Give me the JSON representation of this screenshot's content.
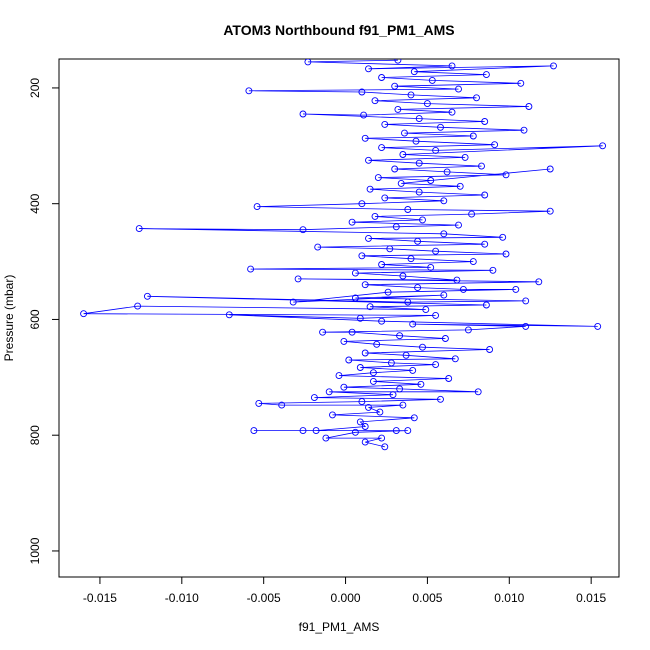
{
  "chart_data": {
    "type": "line",
    "title": "ATOM3 Northbound f91_PM1_AMS",
    "xlabel": "f91_PM1_AMS",
    "ylabel": "Pressure (mbar)",
    "xlim": [
      -0.0175,
      0.0167
    ],
    "ylim": [
      1045,
      150
    ],
    "y_reversed": true,
    "x_ticks": [
      {
        "value": -0.015,
        "label": "-0.015"
      },
      {
        "value": -0.01,
        "label": "-0.010"
      },
      {
        "value": -0.005,
        "label": "-0.005"
      },
      {
        "value": 0.0,
        "label": "0.000"
      },
      {
        "value": 0.005,
        "label": "0.005"
      },
      {
        "value": 0.01,
        "label": "0.010"
      },
      {
        "value": 0.015,
        "label": "0.015"
      }
    ],
    "y_ticks": [
      {
        "value": 200,
        "label": "200"
      },
      {
        "value": 400,
        "label": "400"
      },
      {
        "value": 600,
        "label": "600"
      },
      {
        "value": 800,
        "label": "800"
      },
      {
        "value": 1000,
        "label": "1000"
      }
    ],
    "grid": false,
    "series_color": "#0000ff",
    "marker": "open-circle",
    "series": [
      {
        "name": "",
        "points": [
          [
            0.0024,
            820
          ],
          [
            0.0012,
            812
          ],
          [
            0.0022,
            805
          ],
          [
            -0.0012,
            805
          ],
          [
            0.0006,
            795
          ],
          [
            0.0038,
            792
          ],
          [
            0.0031,
            792
          ],
          [
            -0.0056,
            792
          ],
          [
            -0.0026,
            792
          ],
          [
            -0.0018,
            792
          ],
          [
            0.0012,
            785
          ],
          [
            0.0009,
            777
          ],
          [
            0.0042,
            770
          ],
          [
            -0.0008,
            765
          ],
          [
            0.0021,
            760
          ],
          [
            0.0014,
            752
          ],
          [
            0.0035,
            748
          ],
          [
            -0.0039,
            748
          ],
          [
            -0.0053,
            745
          ],
          [
            0.001,
            742
          ],
          [
            0.0058,
            738
          ],
          [
            -0.0019,
            735
          ],
          [
            0.0029,
            730
          ],
          [
            -0.001,
            725
          ],
          [
            0.0081,
            725
          ],
          [
            0.0033,
            720
          ],
          [
            -0.0001,
            717
          ],
          [
            0.0046,
            712
          ],
          [
            0.0017,
            707
          ],
          [
            0.0063,
            702
          ],
          [
            -0.0004,
            697
          ],
          [
            0.0017,
            692
          ],
          [
            0.0041,
            688
          ],
          [
            0.0009,
            683
          ],
          [
            0.0055,
            678
          ],
          [
            0.0028,
            675
          ],
          [
            0.0002,
            670
          ],
          [
            0.0067,
            668
          ],
          [
            0.0037,
            662
          ],
          [
            0.0012,
            658
          ],
          [
            0.0088,
            652
          ],
          [
            0.0047,
            648
          ],
          [
            0.0019,
            643
          ],
          [
            -0.0001,
            638
          ],
          [
            0.0061,
            633
          ],
          [
            0.0033,
            628
          ],
          [
            0.0004,
            622
          ],
          [
            -0.0014,
            622
          ],
          [
            0.0075,
            618
          ],
          [
            0.011,
            612
          ],
          [
            0.0041,
            608
          ],
          [
            0.0154,
            612
          ],
          [
            0.0022,
            603
          ],
          [
            -0.0071,
            592
          ],
          [
            0.0009,
            598
          ],
          [
            0.0055,
            593
          ],
          [
            -0.016,
            590
          ],
          [
            -0.0127,
            577
          ],
          [
            0.0049,
            583
          ],
          [
            0.0015,
            578
          ],
          [
            0.0086,
            575
          ],
          [
            -0.0121,
            560
          ],
          [
            0.0038,
            570
          ],
          [
            0.011,
            568
          ],
          [
            0.0006,
            563
          ],
          [
            0.006,
            558
          ],
          [
            -0.0032,
            570
          ],
          [
            0.0026,
            553
          ],
          [
            0.0104,
            548
          ],
          [
            0.0072,
            548
          ],
          [
            0.0044,
            545
          ],
          [
            0.0012,
            540
          ],
          [
            0.0118,
            535
          ],
          [
            -0.0029,
            530
          ],
          [
            0.0068,
            532
          ],
          [
            0.0035,
            525
          ],
          [
            0.0006,
            520
          ],
          [
            0.009,
            515
          ],
          [
            -0.0058,
            513
          ],
          [
            0.0052,
            510
          ],
          [
            0.0022,
            505
          ],
          [
            0.0078,
            500
          ],
          [
            0.004,
            495
          ],
          [
            0.001,
            490
          ],
          [
            0.0098,
            487
          ],
          [
            0.0055,
            482
          ],
          [
            0.0027,
            478
          ],
          [
            -0.0017,
            475
          ],
          [
            0.0085,
            470
          ],
          [
            0.0044,
            465
          ],
          [
            0.0014,
            460
          ],
          [
            0.0096,
            458
          ],
          [
            0.006,
            452
          ],
          [
            -0.0126,
            443
          ],
          [
            -0.0026,
            445
          ],
          [
            0.0031,
            440
          ],
          [
            0.0069,
            437
          ],
          [
            0.0004,
            432
          ],
          [
            0.0047,
            428
          ],
          [
            0.0018,
            422
          ],
          [
            0.0077,
            418
          ],
          [
            0.0125,
            413
          ],
          [
            0.0038,
            410
          ],
          [
            -0.0054,
            405
          ],
          [
            0.001,
            400
          ],
          [
            0.006,
            395
          ],
          [
            0.0024,
            390
          ],
          [
            0.0085,
            385
          ],
          [
            0.0045,
            380
          ],
          [
            0.0015,
            375
          ],
          [
            0.007,
            370
          ],
          [
            0.0034,
            365
          ],
          [
            0.0125,
            340
          ],
          [
            0.0052,
            360
          ],
          [
            0.002,
            355
          ],
          [
            0.0098,
            350
          ],
          [
            0.0062,
            345
          ],
          [
            0.003,
            340
          ],
          [
            0.0083,
            335
          ],
          [
            0.0045,
            330
          ],
          [
            0.0014,
            325
          ],
          [
            0.0073,
            320
          ],
          [
            0.0035,
            315
          ],
          [
            0.0157,
            300
          ],
          [
            0.0055,
            308
          ],
          [
            0.0022,
            303
          ],
          [
            0.0091,
            298
          ],
          [
            0.0043,
            292
          ],
          [
            0.0012,
            287
          ],
          [
            0.0078,
            283
          ],
          [
            0.0036,
            278
          ],
          [
            0.0109,
            273
          ],
          [
            0.0058,
            268
          ],
          [
            0.0024,
            263
          ],
          [
            0.0085,
            258
          ],
          [
            0.0045,
            253
          ],
          [
            -0.0026,
            245
          ],
          [
            0.0011,
            247
          ],
          [
            0.0065,
            242
          ],
          [
            0.0032,
            237
          ],
          [
            0.0112,
            232
          ],
          [
            0.005,
            227
          ],
          [
            0.0018,
            222
          ],
          [
            0.008,
            217
          ],
          [
            0.004,
            212
          ],
          [
            0.001,
            207
          ],
          [
            -0.0059,
            205
          ],
          [
            0.0069,
            202
          ],
          [
            0.003,
            197
          ],
          [
            0.0107,
            192
          ],
          [
            0.0053,
            187
          ],
          [
            0.0022,
            182
          ],
          [
            0.0086,
            177
          ],
          [
            0.0042,
            172
          ],
          [
            0.0127,
            162
          ],
          [
            0.0014,
            167
          ],
          [
            0.0065,
            162
          ],
          [
            -0.0023,
            155
          ],
          [
            0.0032,
            152
          ]
        ]
      }
    ]
  }
}
